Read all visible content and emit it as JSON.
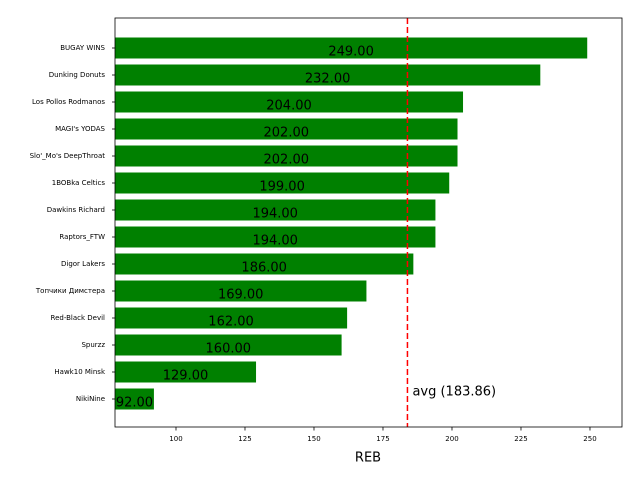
{
  "chart_data": {
    "type": "barh",
    "xlabel": "REB",
    "categories": [
      "BUGAY WINS",
      "Dunking Donuts",
      "Los Pollos Rodmanos",
      "MAGI's YODAS",
      "Slo'_Mo's DeepThroat",
      "1BOBka Celtics",
      "Dawkins Richard",
      "Raptors_FTW",
      "Digor Lakers",
      "Топчики Димстера",
      "Red-Black Devil",
      "Spurzz",
      "Hawk10 Minsk",
      "NikiNine"
    ],
    "values": [
      249,
      232,
      204,
      202,
      202,
      199,
      194,
      194,
      186,
      169,
      162,
      160,
      129,
      92
    ],
    "value_labels": [
      "249.00",
      "232.00",
      "204.00",
      "202.00",
      "202.00",
      "199.00",
      "194.00",
      "194.00",
      "186.00",
      "169.00",
      "162.00",
      "160.00",
      "129.00",
      "92.00"
    ],
    "color": "#008000",
    "avg": 183.86,
    "avg_color": "#ff0000",
    "annotation": "avg (183.86)",
    "xlim": [
      77.9,
      261.6
    ],
    "xticks": [
      100,
      125,
      150,
      175,
      200,
      225,
      250
    ]
  }
}
